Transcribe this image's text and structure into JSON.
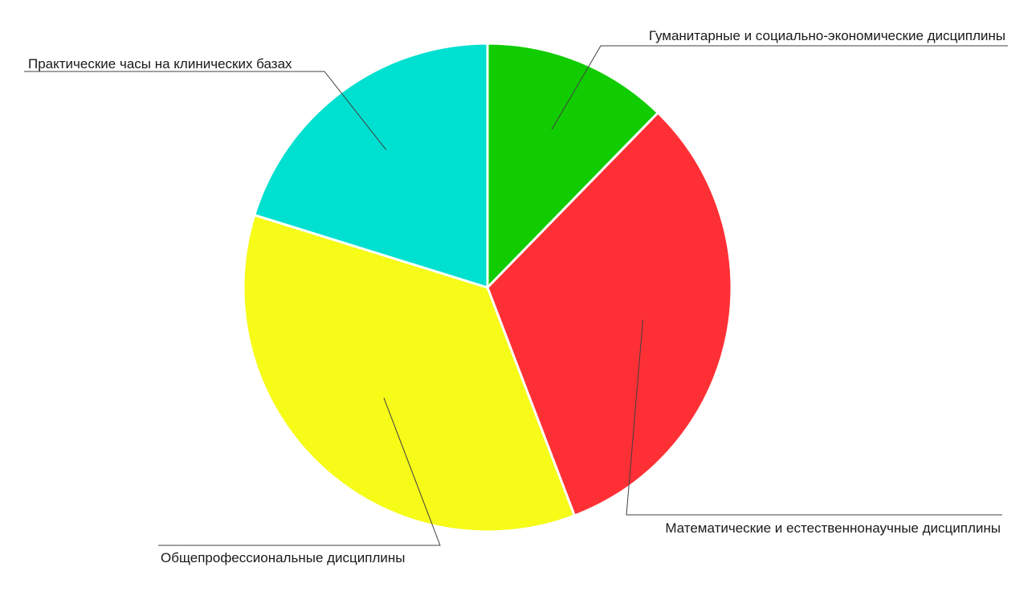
{
  "chart_data": {
    "type": "pie",
    "title": "",
    "start_angle_deg": 0,
    "direction": "clockwise",
    "slices": [
      {
        "label": "Гуманитарные и социально-экономические дисциплины",
        "value": 12.3,
        "color": "#11cc00"
      },
      {
        "label": "Математические и естественнонаучные дисциплины",
        "value": 31.9,
        "color": "#ff3035"
      },
      {
        "label": "Общепрофессиональные дисциплины",
        "value": 35.6,
        "color": "#f6fb18"
      },
      {
        "label": "Практические часы на клинических базах",
        "value": 20.2,
        "color": "#00e0d0"
      }
    ],
    "legend": "none",
    "data_labels": "category names with leader lines"
  }
}
